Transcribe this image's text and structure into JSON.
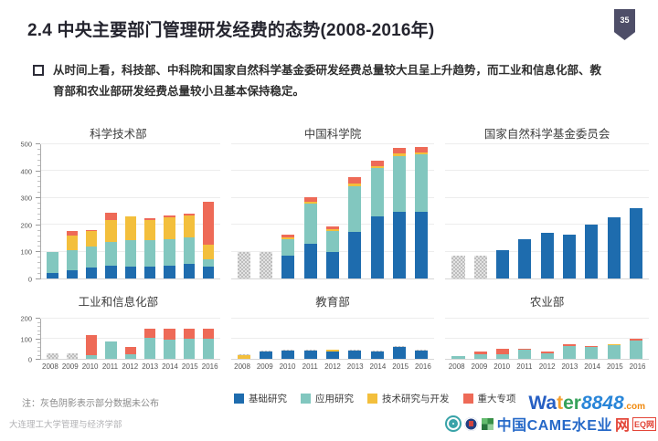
{
  "slide": {
    "title": "2.4  中央主要部门管理研发经费的态势(2008-2016年)",
    "page_number": "35",
    "bullet_text": "从时间上看，科技部、中科院和国家自然科学基金委研发经费总量较大且呈上升趋势，而工业和信息化部、教育部和农业部研发经费总量较小且基本保持稳定。",
    "note": "注：灰色阴影表示部分数据未公布",
    "footer": "大连理工大学管理与经济学部"
  },
  "colors": {
    "basic": "#1e6cae",
    "applied": "#82c7bf",
    "tech": "#f3bf3c",
    "major": "#ee6a57",
    "unpublished": "#c9c9c9"
  },
  "legend": {
    "items": [
      {
        "label": "基础研究",
        "color": "#1e6cae"
      },
      {
        "label": "应用研究",
        "color": "#82c7bf"
      },
      {
        "label": "技术研究与开发",
        "color": "#f3bf3c"
      },
      {
        "label": "重大专项",
        "color": "#ee6a57"
      }
    ]
  },
  "watermark": {
    "word_parts": [
      {
        "text": "Wa",
        "color": "#1c57c0"
      },
      {
        "text": "t",
        "color": "#f59a23"
      },
      {
        "text": "er",
        "color": "#2d9e53"
      },
      {
        "text": "8848",
        "color": "#1d7fd6",
        "italic": true
      },
      {
        "text": ".com",
        "color": "#f08300",
        "small": true
      }
    ],
    "line2": "中国CAME水E业",
    "line2_suffix": "网",
    "badge": "EQ网"
  },
  "chart_data": [
    {
      "type": "bar",
      "stacked": true,
      "title": "科学技术部",
      "categories": [
        "2008",
        "2009",
        "2010",
        "2011",
        "2012",
        "2013",
        "2014",
        "2015",
        "2016"
      ],
      "ylim": [
        0,
        500
      ],
      "ytick_step": 100,
      "ytick_minor": 20,
      "show_y_labels": true,
      "show_x_labels": false,
      "series": [
        {
          "name": "基础研究",
          "key": "basic",
          "values": [
            20,
            30,
            42,
            47,
            43,
            43,
            47,
            55,
            45
          ]
        },
        {
          "name": "应用研究",
          "key": "applied",
          "values": [
            80,
            75,
            78,
            90,
            99,
            99,
            98,
            97,
            27
          ]
        },
        {
          "name": "技术研究与开发",
          "key": "tech",
          "values": [
            0,
            55,
            57,
            80,
            88,
            76,
            83,
            83,
            55
          ]
        },
        {
          "name": "重大专项",
          "key": "major",
          "values": [
            0,
            18,
            2,
            28,
            3,
            7,
            7,
            6,
            158
          ]
        }
      ]
    },
    {
      "type": "bar",
      "stacked": true,
      "title": "中国科学院",
      "categories": [
        "2008",
        "2009",
        "2010",
        "2011",
        "2012",
        "2013",
        "2014",
        "2015",
        "2016"
      ],
      "ylim": [
        0,
        500
      ],
      "ytick_step": 100,
      "ytick_minor": 20,
      "show_y_labels": false,
      "show_x_labels": false,
      "series": [
        {
          "name": "基础研究",
          "key": "basic",
          "values": [
            0,
            0,
            85,
            130,
            100,
            175,
            230,
            250,
            250
          ]
        },
        {
          "name": "应用研究",
          "key": "applied",
          "values": [
            0,
            0,
            62,
            150,
            78,
            170,
            180,
            205,
            212
          ]
        },
        {
          "name": "技术研究与开发",
          "key": "tech",
          "values": [
            0,
            0,
            6,
            5,
            5,
            8,
            8,
            10,
            8
          ]
        },
        {
          "name": "重大专项",
          "key": "major",
          "values": [
            0,
            0,
            12,
            17,
            12,
            25,
            20,
            21,
            20
          ]
        },
        {
          "name": "部分数据未公布",
          "key": "unpublished",
          "values": [
            100,
            100,
            0,
            0,
            0,
            0,
            0,
            0,
            0
          ]
        }
      ]
    },
    {
      "type": "bar",
      "stacked": true,
      "title": "国家自然科学基金委员会",
      "categories": [
        "2008",
        "2009",
        "2010",
        "2011",
        "2012",
        "2013",
        "2014",
        "2015",
        "2016"
      ],
      "ylim": [
        0,
        500
      ],
      "ytick_step": 100,
      "ytick_minor": 20,
      "show_y_labels": false,
      "show_x_labels": false,
      "series": [
        {
          "name": "基础研究",
          "key": "basic",
          "values": [
            0,
            0,
            105,
            148,
            170,
            165,
            200,
            228,
            262
          ]
        },
        {
          "name": "部分数据未公布",
          "key": "unpublished",
          "values": [
            85,
            85,
            0,
            0,
            0,
            0,
            0,
            0,
            0
          ]
        }
      ]
    },
    {
      "type": "bar",
      "stacked": true,
      "title": "工业和信息化部",
      "categories": [
        "2008",
        "2009",
        "2010",
        "2011",
        "2012",
        "2013",
        "2014",
        "2015",
        "2016"
      ],
      "ylim": [
        0,
        200
      ],
      "ytick_step": 100,
      "ytick_minor": 20,
      "show_y_labels": true,
      "show_x_labels": true,
      "series": [
        {
          "name": "应用研究",
          "key": "applied",
          "values": [
            0,
            0,
            20,
            86,
            24,
            105,
            97,
            101,
            101
          ]
        },
        {
          "name": "重大专项",
          "key": "major",
          "values": [
            0,
            0,
            98,
            0,
            35,
            43,
            51,
            47,
            47
          ]
        },
        {
          "name": "部分数据未公布",
          "key": "unpublished",
          "values": [
            28,
            28,
            0,
            0,
            0,
            0,
            0,
            0,
            0
          ]
        }
      ]
    },
    {
      "type": "bar",
      "stacked": true,
      "title": "教育部",
      "categories": [
        "2008",
        "2009",
        "2010",
        "2011",
        "2012",
        "2013",
        "2014",
        "2015",
        "2016"
      ],
      "ylim": [
        0,
        200
      ],
      "ytick_step": 100,
      "ytick_minor": 20,
      "show_y_labels": false,
      "show_x_labels": true,
      "series": [
        {
          "name": "基础研究",
          "key": "basic",
          "values": [
            0,
            38,
            40,
            43,
            36,
            42,
            36,
            58,
            42
          ]
        },
        {
          "name": "技术研究与开发",
          "key": "tech",
          "values": [
            18,
            0,
            0,
            0,
            8,
            0,
            0,
            0,
            0
          ]
        },
        {
          "name": "部分数据未公布",
          "key": "unpublished",
          "values": [
            4,
            4,
            4,
            4,
            0,
            4,
            4,
            5,
            4
          ]
        }
      ]
    },
    {
      "type": "bar",
      "stacked": true,
      "title": "农业部",
      "categories": [
        "2008",
        "2009",
        "2010",
        "2011",
        "2012",
        "2013",
        "2014",
        "2015",
        "2016"
      ],
      "ylim": [
        0,
        200
      ],
      "ytick_step": 100,
      "ytick_minor": 20,
      "show_y_labels": false,
      "show_x_labels": true,
      "series": [
        {
          "name": "应用研究",
          "key": "applied",
          "values": [
            15,
            25,
            25,
            45,
            28,
            65,
            58,
            68,
            90
          ]
        },
        {
          "name": "技术研究与开发",
          "key": "tech",
          "values": [
            0,
            0,
            0,
            0,
            0,
            0,
            3,
            4,
            0
          ]
        },
        {
          "name": "重大专项",
          "key": "major",
          "values": [
            0,
            10,
            25,
            3,
            7,
            8,
            4,
            3,
            10
          ]
        }
      ]
    }
  ]
}
